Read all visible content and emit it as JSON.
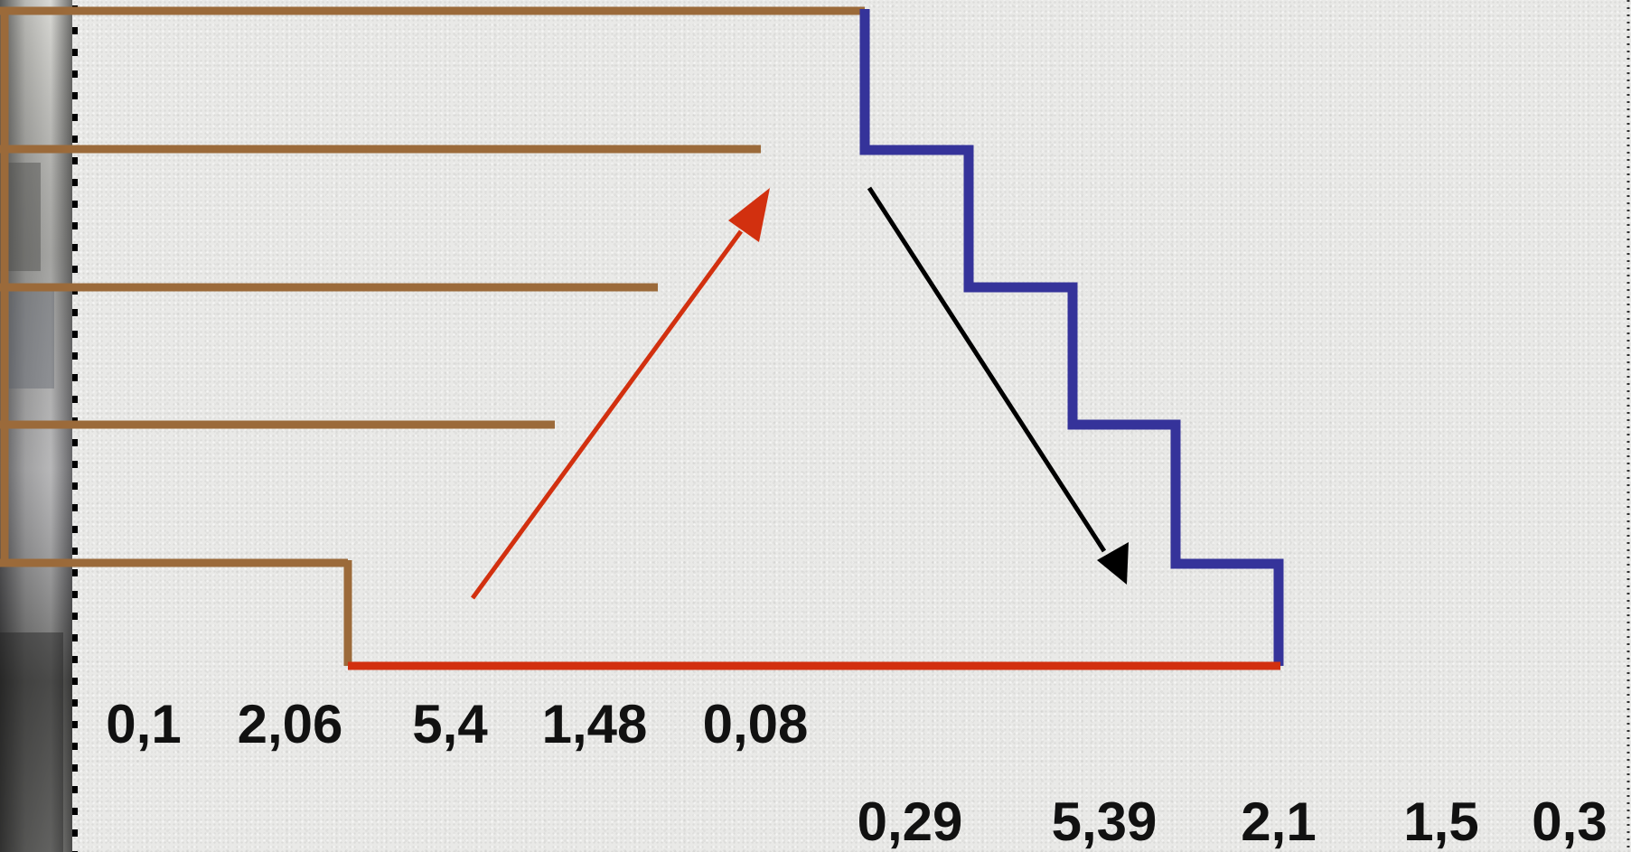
{
  "colors": {
    "brown_steps": "#9b6a3a",
    "blue_steps": "#35339a",
    "base_line": "#d2300f",
    "up_arrow": "#d2300f",
    "down_arrow": "#000000",
    "left_strip_dots": "#000000"
  },
  "icons": {
    "up_arrow": "arrow-up-right-icon",
    "down_arrow": "arrow-down-right-icon"
  },
  "left_values": [
    "0,1",
    "2,06",
    "5,4",
    "1,48",
    "0,08"
  ],
  "right_values": [
    "0,29",
    "5,39",
    "2,1",
    "1,5",
    "0,3"
  ]
}
